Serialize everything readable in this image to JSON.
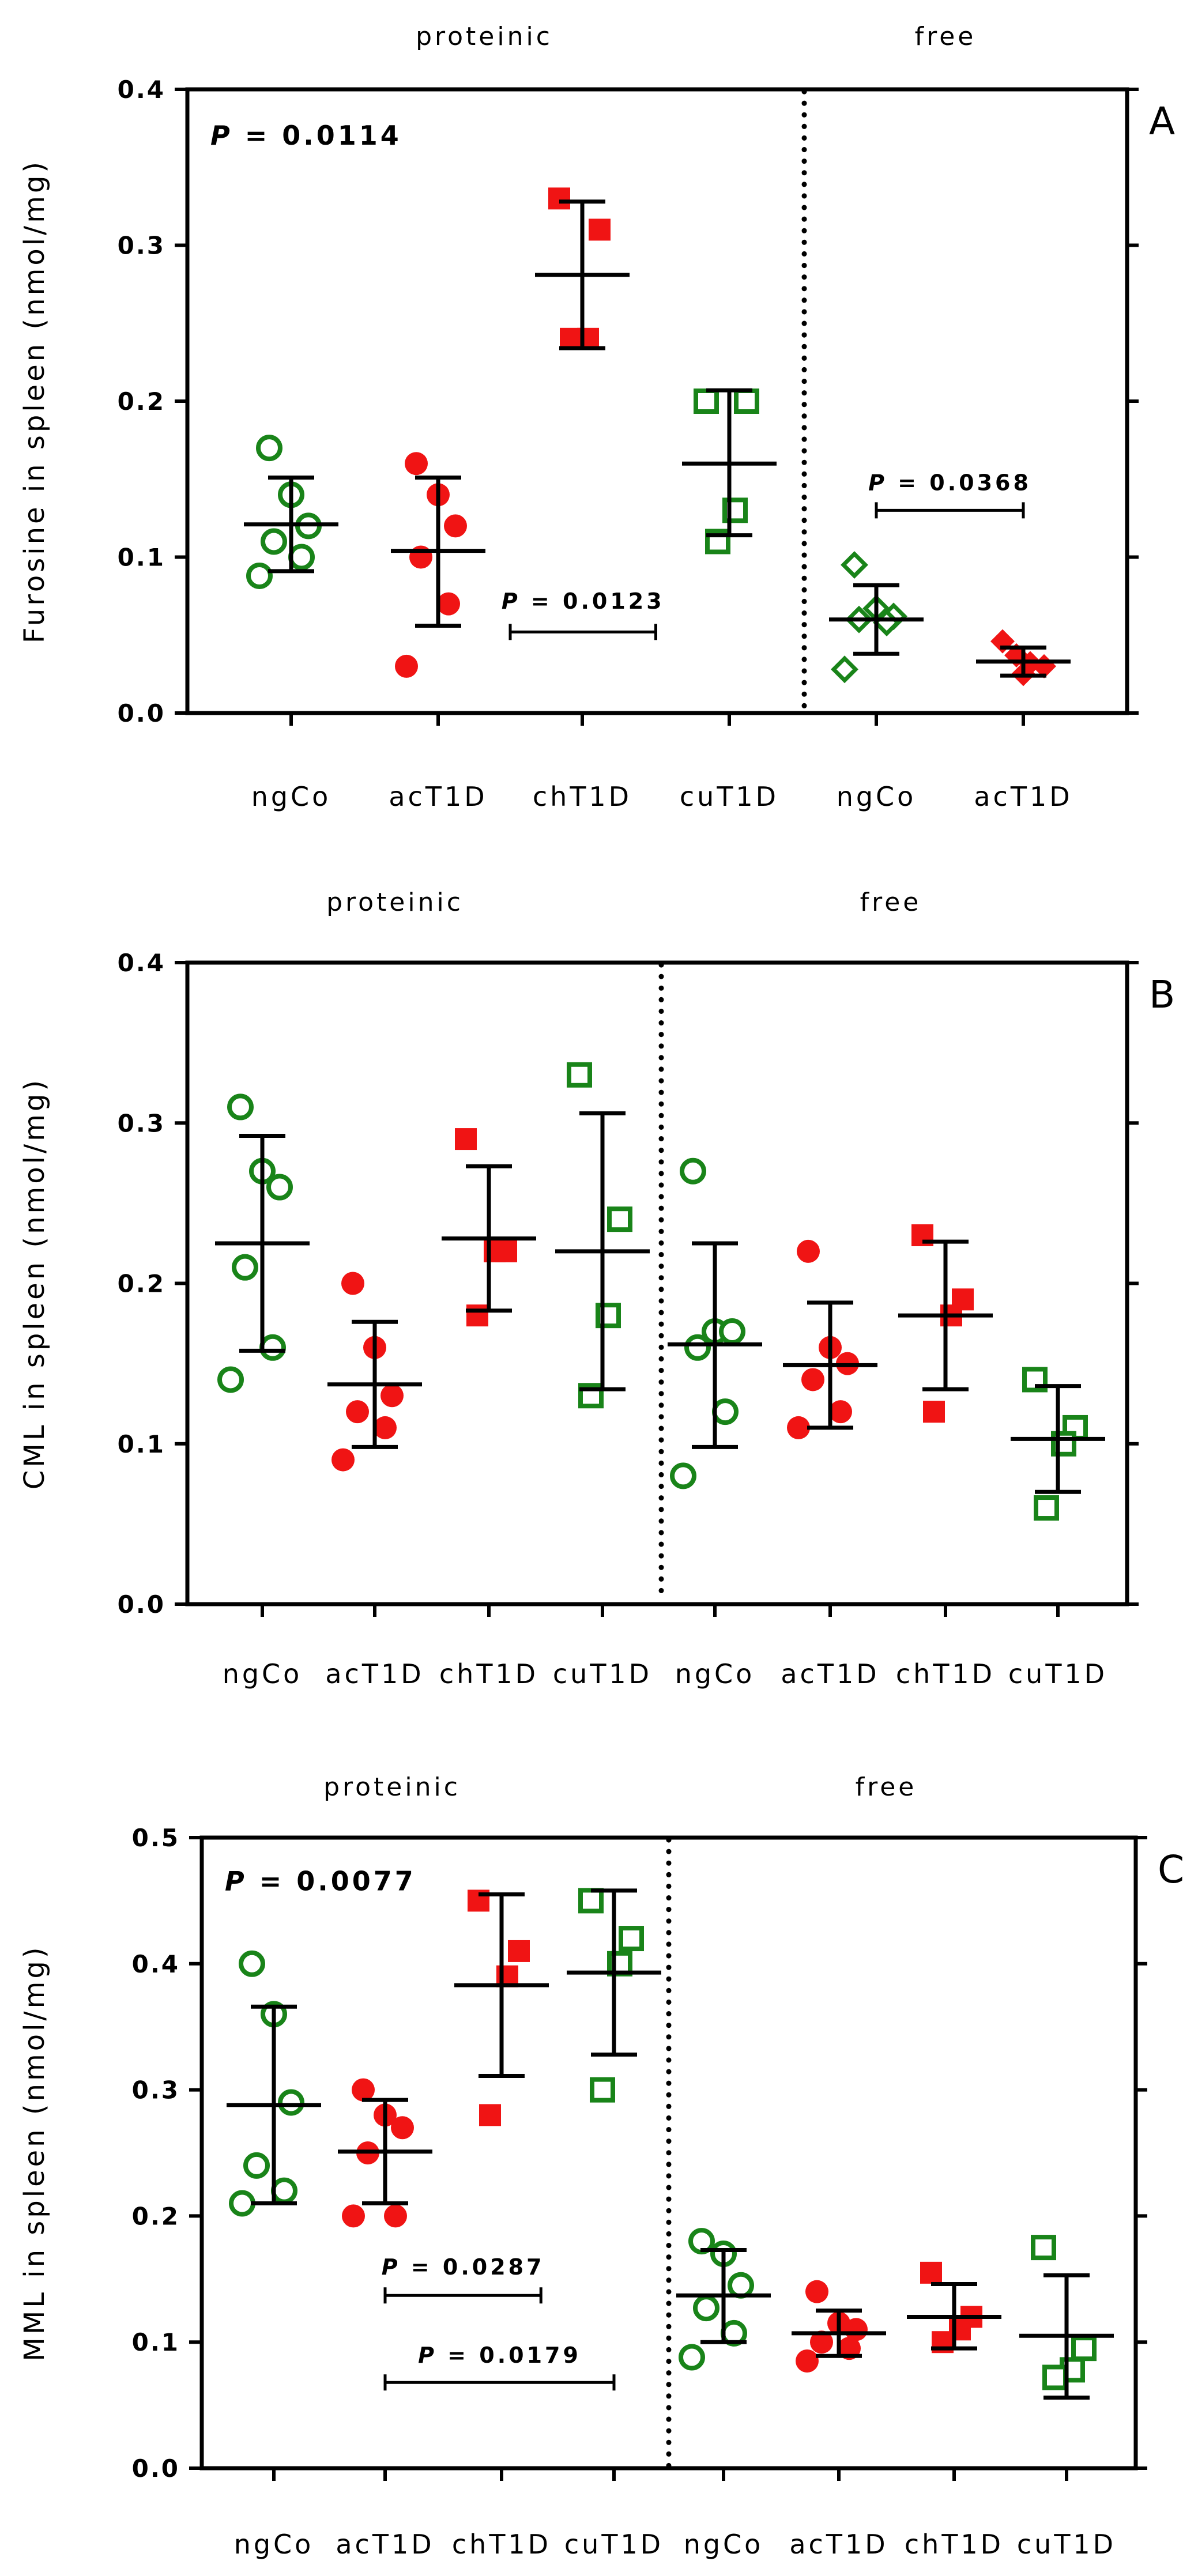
{
  "colors": {
    "green": "#198419",
    "red": "#f01414",
    "black": "#000000"
  },
  "chart_data": [
    {
      "panel_label": "A",
      "type": "scatter",
      "ylabel": "Furosine in spleen (nmol/mg)",
      "ylim": [
        0,
        0.4
      ],
      "yticks": [
        "0.0",
        "0.1",
        "0.2",
        "0.3",
        "0.4"
      ],
      "group_headers": [
        {
          "label": "proteinic"
        },
        {
          "label": "free"
        }
      ],
      "categories": [
        "ngCo",
        "acT1D",
        "chT1D",
        "cuT1D",
        "ngCo",
        "acT1D"
      ],
      "divider_after": 4,
      "series": [
        {
          "category": "ngCo",
          "group": "proteinic",
          "marker": "circle",
          "fill": "open",
          "color": "green",
          "mean": 0.121,
          "sd_low": 0.091,
          "sd_high": 0.151,
          "values": [
            0.17,
            0.14,
            0.12,
            0.11,
            0.1,
            0.088
          ]
        },
        {
          "category": "acT1D",
          "group": "proteinic",
          "marker": "circle",
          "fill": "solid",
          "color": "red",
          "mean": 0.104,
          "sd_low": 0.056,
          "sd_high": 0.151,
          "values": [
            0.16,
            0.14,
            0.12,
            0.1,
            0.07,
            0.03
          ]
        },
        {
          "category": "chT1D",
          "group": "proteinic",
          "marker": "square",
          "fill": "solid",
          "color": "red",
          "mean": 0.281,
          "sd_low": 0.234,
          "sd_high": 0.328,
          "values": [
            0.33,
            0.31,
            0.24,
            0.24
          ]
        },
        {
          "category": "cuT1D",
          "group": "proteinic",
          "marker": "square",
          "fill": "open",
          "color": "green",
          "mean": 0.16,
          "sd_low": 0.114,
          "sd_high": 0.207,
          "values": [
            0.2,
            0.2,
            0.13,
            0.11
          ]
        },
        {
          "category": "ngCo",
          "group": "free",
          "marker": "diamond",
          "fill": "open",
          "color": "green",
          "mean": 0.06,
          "sd_low": 0.038,
          "sd_high": 0.082,
          "values": [
            0.095,
            0.067,
            0.062,
            0.06,
            0.058,
            0.028
          ]
        },
        {
          "category": "acT1D",
          "group": "free",
          "marker": "diamond",
          "fill": "solid",
          "color": "red",
          "mean": 0.033,
          "sd_low": 0.024,
          "sd_high": 0.042,
          "values": [
            0.046,
            0.037,
            0.032,
            0.03,
            0.025
          ]
        }
      ],
      "annotations": [
        {
          "text": "P = 0.0114",
          "type": "overall",
          "x": 0.0,
          "y": 0.37
        },
        {
          "text": "P = 0.0123",
          "type": "pair",
          "from": 1.5,
          "to": 2.5,
          "y": 0.052,
          "label_y": 0.072
        },
        {
          "text": "P = 0.0368",
          "type": "pair",
          "from": 4.0,
          "to": 5.0,
          "y": 0.13,
          "label_y": 0.148
        }
      ]
    },
    {
      "panel_label": "B",
      "type": "scatter",
      "ylabel": "CML in spleen (nmol/mg)",
      "ylim": [
        0,
        0.4
      ],
      "yticks": [
        "0.0",
        "0.1",
        "0.2",
        "0.3",
        "0.4"
      ],
      "group_headers": [
        {
          "label": "proteinic"
        },
        {
          "label": "free"
        }
      ],
      "categories": [
        "ngCo",
        "acT1D",
        "chT1D",
        "cuT1D",
        "ngCo",
        "acT1D",
        "chT1D",
        "cuT1D"
      ],
      "divider_after": 4,
      "series": [
        {
          "category": "ngCo",
          "group": "proteinic",
          "marker": "circle",
          "fill": "open",
          "color": "green",
          "mean": 0.225,
          "sd_low": 0.158,
          "sd_high": 0.292,
          "values": [
            0.31,
            0.27,
            0.26,
            0.21,
            0.16,
            0.14
          ]
        },
        {
          "category": "acT1D",
          "group": "proteinic",
          "marker": "circle",
          "fill": "solid",
          "color": "red",
          "mean": 0.137,
          "sd_low": 0.098,
          "sd_high": 0.176,
          "values": [
            0.2,
            0.16,
            0.13,
            0.12,
            0.11,
            0.09
          ]
        },
        {
          "category": "chT1D",
          "group": "proteinic",
          "marker": "square",
          "fill": "solid",
          "color": "red",
          "mean": 0.228,
          "sd_low": 0.183,
          "sd_high": 0.273,
          "values": [
            0.29,
            0.22,
            0.22,
            0.18
          ]
        },
        {
          "category": "cuT1D",
          "group": "proteinic",
          "marker": "square",
          "fill": "open",
          "color": "green",
          "mean": 0.22,
          "sd_low": 0.134,
          "sd_high": 0.306,
          "values": [
            0.33,
            0.24,
            0.18,
            0.13
          ]
        },
        {
          "category": "ngCo",
          "group": "free",
          "marker": "circle",
          "fill": "open",
          "color": "green",
          "mean": 0.162,
          "sd_low": 0.098,
          "sd_high": 0.225,
          "values": [
            0.27,
            0.17,
            0.17,
            0.16,
            0.12,
            0.08
          ]
        },
        {
          "category": "acT1D",
          "group": "free",
          "marker": "circle",
          "fill": "solid",
          "color": "red",
          "mean": 0.149,
          "sd_low": 0.11,
          "sd_high": 0.188,
          "values": [
            0.22,
            0.16,
            0.15,
            0.14,
            0.12,
            0.11
          ]
        },
        {
          "category": "chT1D",
          "group": "free",
          "marker": "square",
          "fill": "solid",
          "color": "red",
          "mean": 0.18,
          "sd_low": 0.134,
          "sd_high": 0.226,
          "values": [
            0.23,
            0.19,
            0.18,
            0.12
          ]
        },
        {
          "category": "cuT1D",
          "group": "free",
          "marker": "square",
          "fill": "open",
          "color": "green",
          "mean": 0.103,
          "sd_low": 0.07,
          "sd_high": 0.136,
          "values": [
            0.14,
            0.11,
            0.1,
            0.06
          ]
        }
      ],
      "annotations": []
    },
    {
      "panel_label": "C",
      "type": "scatter",
      "ylabel": "MML in spleen (nmol/mg)",
      "ylim": [
        0,
        0.5
      ],
      "yticks": [
        "0.0",
        "0.1",
        "0.2",
        "0.3",
        "0.4",
        "0.5"
      ],
      "group_headers": [
        {
          "label": "proteinic"
        },
        {
          "label": "free"
        }
      ],
      "categories": [
        "ngCo",
        "acT1D",
        "chT1D",
        "cuT1D",
        "ngCo",
        "acT1D",
        "chT1D",
        "cuT1D"
      ],
      "divider_after": 4,
      "series": [
        {
          "category": "ngCo",
          "group": "proteinic",
          "marker": "circle",
          "fill": "open",
          "color": "green",
          "mean": 0.288,
          "sd_low": 0.21,
          "sd_high": 0.366,
          "values": [
            0.4,
            0.36,
            0.29,
            0.24,
            0.22,
            0.21
          ]
        },
        {
          "category": "acT1D",
          "group": "proteinic",
          "marker": "circle",
          "fill": "solid",
          "color": "red",
          "mean": 0.251,
          "sd_low": 0.21,
          "sd_high": 0.292,
          "values": [
            0.3,
            0.28,
            0.27,
            0.25,
            0.2,
            0.2
          ]
        },
        {
          "category": "chT1D",
          "group": "proteinic",
          "marker": "square",
          "fill": "solid",
          "color": "red",
          "mean": 0.383,
          "sd_low": 0.311,
          "sd_high": 0.455,
          "values": [
            0.45,
            0.41,
            0.39,
            0.28
          ]
        },
        {
          "category": "cuT1D",
          "group": "proteinic",
          "marker": "square",
          "fill": "open",
          "color": "green",
          "mean": 0.393,
          "sd_low": 0.328,
          "sd_high": 0.458,
          "values": [
            0.45,
            0.42,
            0.4,
            0.3
          ]
        },
        {
          "category": "ngCo",
          "group": "free",
          "marker": "circle",
          "fill": "open",
          "color": "green",
          "mean": 0.137,
          "sd_low": 0.1,
          "sd_high": 0.173,
          "values": [
            0.18,
            0.17,
            0.145,
            0.127,
            0.107,
            0.088
          ]
        },
        {
          "category": "acT1D",
          "group": "free",
          "marker": "circle",
          "fill": "solid",
          "color": "red",
          "mean": 0.107,
          "sd_low": 0.089,
          "sd_high": 0.125,
          "values": [
            0.14,
            0.115,
            0.11,
            0.1,
            0.095,
            0.085
          ]
        },
        {
          "category": "chT1D",
          "group": "free",
          "marker": "square",
          "fill": "solid",
          "color": "red",
          "mean": 0.12,
          "sd_low": 0.095,
          "sd_high": 0.146,
          "values": [
            0.155,
            0.12,
            0.11,
            0.1
          ]
        },
        {
          "category": "cuT1D",
          "group": "free",
          "marker": "square",
          "fill": "open",
          "color": "green",
          "mean": 0.105,
          "sd_low": 0.056,
          "sd_high": 0.153,
          "values": [
            0.175,
            0.095,
            0.078,
            0.072
          ]
        }
      ],
      "annotations": [
        {
          "text": "P = 0.0077",
          "type": "overall",
          "x": 0.0,
          "y": 0.465
        },
        {
          "text": "P = 0.0287",
          "type": "pair",
          "from": 1.0,
          "to": 2.35,
          "y": 0.137,
          "label_y": 0.16
        },
        {
          "text": "P = 0.0179",
          "type": "pair",
          "from": 1.0,
          "to": 3.0,
          "y": 0.068,
          "label_y": 0.09
        }
      ]
    }
  ]
}
